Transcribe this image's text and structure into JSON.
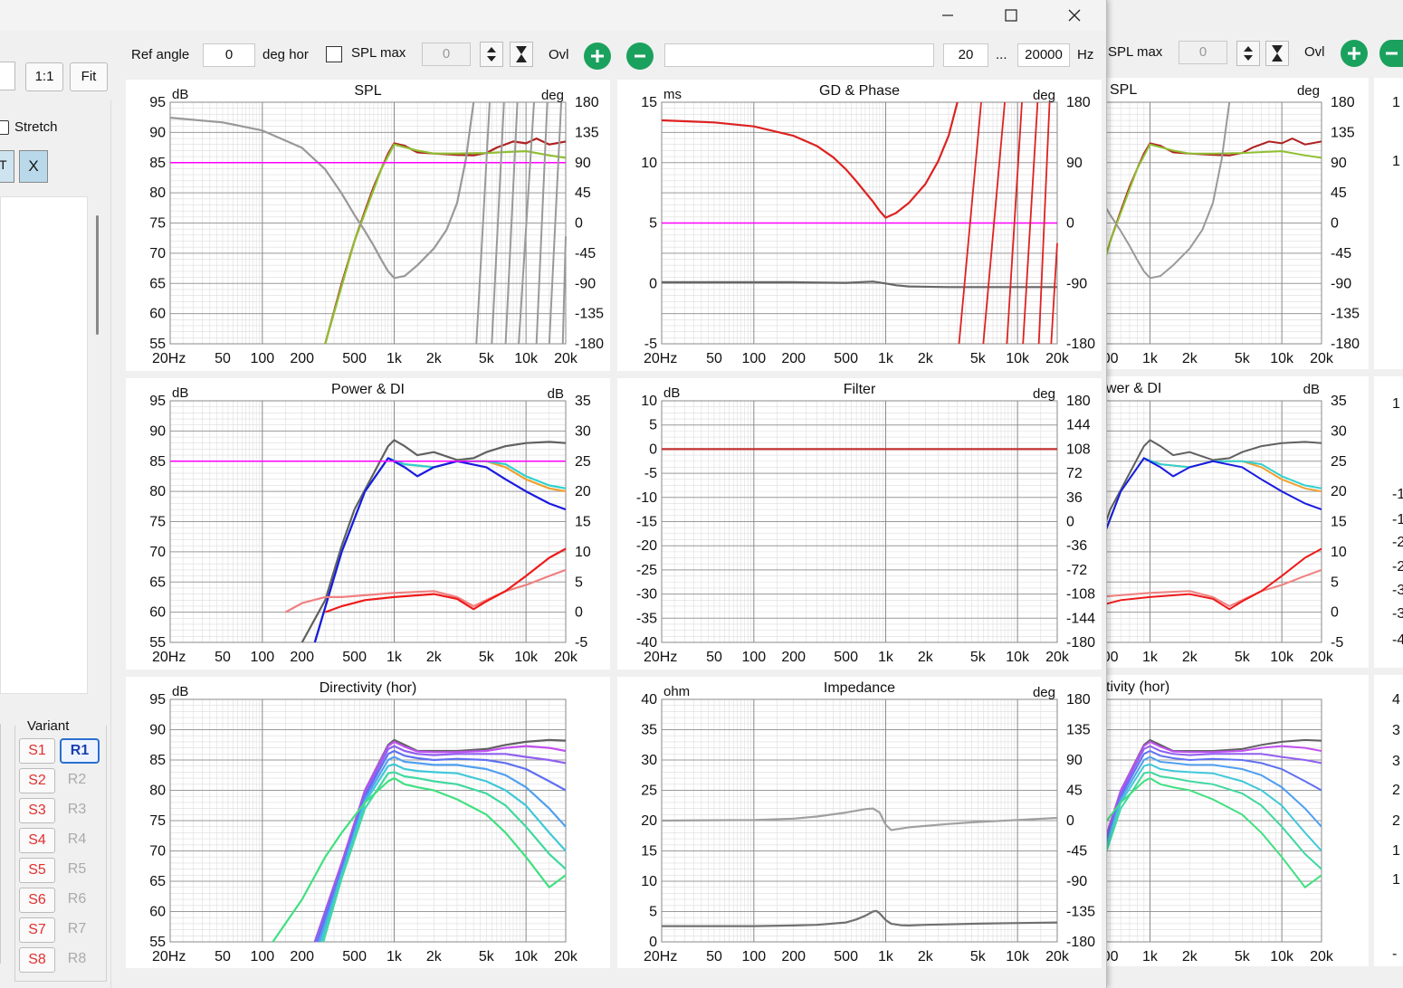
{
  "window": {
    "minimize": "minimize",
    "maximize": "maximize",
    "close": "close"
  },
  "toolbar": {
    "ref_angle_label": "Ref angle",
    "ref_angle_value": "0",
    "deg_hor_label": "deg hor",
    "spl_max_label": "SPL max",
    "spl_max_value": "0",
    "ovl_label": "Ovl",
    "freq_from": "20",
    "freq_dots": "...",
    "freq_to": "20000",
    "hz_label": "Hz"
  },
  "left_panel": {
    "btn_1to1": "1:1",
    "btn_fit": "Fit",
    "stretch_label": "Stretch",
    "btn_x": "X",
    "variant_label": "Variant",
    "s_buttons": [
      "S1",
      "S2",
      "S3",
      "S4",
      "S5",
      "S6",
      "S7",
      "S8"
    ],
    "r_buttons": [
      "R1",
      "R2",
      "R3",
      "R4",
      "R5",
      "R6",
      "R7",
      "R8"
    ]
  },
  "freq_ticks": [
    "20Hz",
    "50",
    "100",
    "200",
    "500",
    "1k",
    "2k",
    "5k",
    "10k",
    "20k"
  ],
  "partial_freq_ticks": [
    "00",
    "1k",
    "2k",
    "5k",
    "10k",
    "20k"
  ],
  "background_window": {
    "spl_max_label": "SPL max",
    "spl_max_value": "0",
    "ovl_label": "Ovl",
    "titles": [
      "SPL",
      "wer & DI",
      "tivity (hor)"
    ],
    "spl_unit_right": "deg",
    "pdi_unit_right": "dB",
    "spl_right_ticks": [
      "180",
      "135",
      "90",
      "45",
      "0",
      "-45",
      "-90",
      "-135",
      "-180"
    ],
    "pdi_right_ticks": [
      "35",
      "30",
      "25",
      "20",
      "15",
      "10",
      "5",
      "0",
      "-5"
    ],
    "edge_glyphs": [
      "1",
      "1",
      "1",
      "-1",
      "-1",
      "-2",
      "-2",
      "-3",
      "-3",
      "-4",
      "4",
      "3",
      "3",
      "2",
      "2",
      "1",
      "1",
      "-"
    ]
  },
  "chart_data": [
    {
      "type": "line",
      "title": "SPL",
      "ylabel": "dB",
      "y2label": "deg",
      "ylim": [
        55,
        95
      ],
      "y2lim": [
        -180,
        180
      ],
      "yticks": [
        "95",
        "90",
        "85",
        "80",
        "75",
        "70",
        "65",
        "60",
        "55"
      ],
      "y2ticks": [
        "180",
        "135",
        "90",
        "45",
        "0",
        "-45",
        "-90",
        "-135",
        "-180"
      ],
      "xlim": [
        20,
        20000
      ],
      "xscale": "log",
      "grid": true,
      "series": [
        {
          "color": "#b02020",
          "axis": "y",
          "x": [
            300,
            400,
            500,
            600,
            700,
            800,
            900,
            1000,
            1200,
            1500,
            2000,
            3000,
            4000,
            5000,
            6000,
            8000,
            10000,
            12000,
            15000,
            20000
          ],
          "y": [
            55,
            65,
            72,
            77,
            81,
            84,
            86.5,
            88.2,
            87.8,
            86.7,
            86.5,
            86.3,
            86.2,
            86.6,
            87.5,
            88.5,
            88.2,
            89,
            88,
            88.5
          ]
        },
        {
          "color": "#8fbf30",
          "axis": "y",
          "x": [
            300,
            500,
            800,
            1000,
            1500,
            2000,
            3000,
            5000,
            8000,
            10000,
            15000,
            20000
          ],
          "y": [
            55,
            72,
            84,
            88,
            87,
            86.5,
            86.5,
            86.6,
            86.8,
            86.9,
            86.2,
            85.8
          ]
        },
        {
          "color": "#999999",
          "axis": "y2",
          "x": [
            20,
            50,
            100,
            200,
            300,
            400,
            500,
            600,
            700,
            800,
            900,
            1000,
            1200,
            1500,
            2000,
            2500,
            3000,
            3500,
            4000
          ],
          "y": [
            157,
            150,
            138,
            112,
            80,
            44,
            12,
            -12,
            -34,
            -55,
            -72,
            -82,
            -79,
            -63,
            -38,
            -10,
            30,
            95,
            180
          ]
        },
        {
          "color": "#ff00ff",
          "axis": "y",
          "x": [
            20,
            20000
          ],
          "y": [
            85,
            85
          ]
        }
      ]
    },
    {
      "type": "line",
      "title": "GD & Phase",
      "ylabel": "ms",
      "y2label": "deg",
      "ylim": [
        -5,
        15
      ],
      "y2lim": [
        -180,
        180
      ],
      "yticks": [
        "15",
        "",
        "10",
        "",
        "5",
        "",
        "0",
        "",
        "-5"
      ],
      "y2ticks": [
        "180",
        "",
        "90",
        "",
        "0",
        "",
        "-90",
        "",
        "-180"
      ],
      "xlim": [
        20,
        20000
      ],
      "xscale": "log",
      "grid": true,
      "series": [
        {
          "color": "#dd2222",
          "axis": "y2",
          "x": [
            20,
            50,
            100,
            200,
            300,
            400,
            500,
            600,
            700,
            800,
            900,
            1000,
            1200,
            1500,
            2000,
            2500,
            3000,
            3500
          ],
          "y": [
            153,
            150,
            144,
            130,
            115,
            98,
            80,
            62,
            46,
            32,
            18,
            8,
            15,
            30,
            58,
            92,
            130,
            180
          ]
        },
        {
          "color": "#ff00ff",
          "axis": "y",
          "x": [
            20,
            20000
          ],
          "y": [
            5,
            5
          ]
        },
        {
          "color": "#666666",
          "axis": "y",
          "x": [
            20,
            200,
            500,
            800,
            1000,
            1200,
            1500,
            3000,
            20000
          ],
          "y": [
            0.1,
            0.1,
            0.05,
            0.15,
            0.0,
            -0.15,
            -0.25,
            -0.3,
            -0.3
          ]
        }
      ]
    },
    {
      "type": "line",
      "title": "Power & DI",
      "ylabel": "dB",
      "y2label": "dB",
      "ylim": [
        55,
        95
      ],
      "y2lim": [
        -5,
        35
      ],
      "yticks": [
        "95",
        "90",
        "85",
        "80",
        "75",
        "70",
        "65",
        "60",
        "55"
      ],
      "y2ticks": [
        "35",
        "30",
        "25",
        "20",
        "15",
        "10",
        "5",
        "0",
        "-5"
      ],
      "xlim": [
        20,
        20000
      ],
      "xscale": "log",
      "grid": true,
      "series": [
        {
          "color": "#606060",
          "axis": "y",
          "x": [
            200,
            300,
            400,
            500,
            700,
            900,
            1000,
            1200,
            1500,
            2000,
            3000,
            4000,
            5000,
            7000,
            10000,
            15000,
            20000
          ],
          "y": [
            55,
            62,
            71,
            77,
            83,
            87.5,
            88.5,
            87.5,
            86,
            86.5,
            85.2,
            85.5,
            86.5,
            87.5,
            88,
            88.2,
            88
          ]
        },
        {
          "color": "#f0a030",
          "axis": "y",
          "x": [
            250,
            400,
            600,
            900,
            1200,
            2000,
            3000,
            5000,
            7000,
            10000,
            15000,
            20000
          ],
          "y": [
            55,
            70,
            80,
            85.5,
            84.5,
            84,
            85,
            85,
            84,
            82,
            80.5,
            80
          ]
        },
        {
          "color": "#30d0d0",
          "axis": "y",
          "x": [
            250,
            400,
            600,
            900,
            1200,
            2000,
            3000,
            5000,
            7000,
            10000,
            15000,
            20000
          ],
          "y": [
            55,
            70,
            80,
            85.5,
            84.5,
            84,
            85,
            85,
            84.5,
            82.5,
            81,
            80.5
          ]
        },
        {
          "color": "#1a1ae0",
          "axis": "y",
          "x": [
            250,
            400,
            600,
            900,
            1200,
            1500,
            2000,
            3000,
            5000,
            7000,
            10000,
            15000,
            20000
          ],
          "y": [
            55,
            70,
            80,
            85.5,
            84,
            82.5,
            84,
            85,
            84,
            82,
            80,
            78,
            77
          ]
        },
        {
          "color": "#f08080",
          "axis": "y2",
          "x": [
            150,
            200,
            300,
            400,
            600,
            1000,
            2000,
            3000,
            4000,
            5000,
            7000,
            10000,
            15000,
            20000
          ],
          "y": [
            0,
            1.5,
            2.5,
            2.5,
            2.8,
            3.2,
            3.5,
            2.5,
            1,
            2,
            3.5,
            4.5,
            6,
            7
          ]
        },
        {
          "color": "#ee1a1a",
          "axis": "y2",
          "x": [
            300,
            400,
            600,
            1000,
            2000,
            3000,
            4000,
            5000,
            7000,
            10000,
            15000,
            20000
          ],
          "y": [
            0,
            1,
            2,
            2.5,
            3,
            2.2,
            0.5,
            1.8,
            3.5,
            6,
            9,
            10.5
          ]
        },
        {
          "color": "#ff00ff",
          "axis": "y",
          "x": [
            20,
            20000
          ],
          "y": [
            85,
            85
          ]
        }
      ]
    },
    {
      "type": "line",
      "title": "Filter",
      "ylabel": "dB",
      "y2label": "deg",
      "ylim": [
        -40,
        10
      ],
      "y2lim": [
        -180,
        180
      ],
      "yticks": [
        "10",
        "5",
        "0",
        "-5",
        "-10",
        "-15",
        "-20",
        "-25",
        "-30",
        "-35",
        "-40"
      ],
      "y2ticks": [
        "180",
        "144",
        "108",
        "72",
        "36",
        "0",
        "-36",
        "-72",
        "-108",
        "-144",
        "-180"
      ],
      "xlim": [
        20,
        20000
      ],
      "xscale": "log",
      "grid": true,
      "series": [
        {
          "color": "#c03030",
          "axis": "y",
          "x": [
            20,
            20000
          ],
          "y": [
            0,
            0
          ]
        }
      ]
    },
    {
      "type": "line",
      "title": "Directivity (hor)",
      "ylabel": "dB",
      "ylim": [
        55,
        95
      ],
      "yticks": [
        "95",
        "90",
        "85",
        "80",
        "75",
        "70",
        "65",
        "60",
        "55"
      ],
      "xlim": [
        20,
        20000
      ],
      "xscale": "log",
      "grid": true,
      "series": [
        {
          "color": "#606060",
          "x": [
            250,
            400,
            600,
            900,
            1000,
            1200,
            1500,
            2000,
            3000,
            5000,
            7000,
            10000,
            15000,
            20000
          ],
          "y": [
            55,
            68,
            80,
            87.5,
            88.3,
            87.5,
            86.5,
            86.5,
            86.5,
            86.8,
            87.5,
            88,
            88.3,
            88.2
          ]
        },
        {
          "color": "#c050f0",
          "x": [
            250,
            400,
            600,
            900,
            1000,
            1200,
            1500,
            2000,
            3000,
            5000,
            7000,
            10000,
            15000,
            20000
          ],
          "y": [
            55,
            68,
            80,
            87.3,
            88,
            87.2,
            86.4,
            86.3,
            86.3,
            86.5,
            87,
            87.3,
            87,
            86.5
          ]
        },
        {
          "color": "#9060f0",
          "x": [
            250,
            400,
            600,
            900,
            1000,
            1200,
            1500,
            2000,
            3000,
            5000,
            7000,
            10000,
            15000,
            20000
          ],
          "y": [
            55,
            67.5,
            79.5,
            86.8,
            87.3,
            86.5,
            86,
            85.8,
            86,
            86,
            86,
            85.5,
            85,
            84.5
          ]
        },
        {
          "color": "#6070f0",
          "x": [
            260,
            400,
            600,
            900,
            1000,
            1200,
            1500,
            2000,
            3000,
            5000,
            7000,
            10000,
            15000,
            20000
          ],
          "y": [
            55,
            67,
            79,
            86,
            86.5,
            85.7,
            85.3,
            85,
            85.2,
            85,
            84.5,
            83.5,
            81.5,
            80
          ]
        },
        {
          "color": "#50a0f0",
          "x": [
            270,
            400,
            600,
            900,
            1000,
            1200,
            1500,
            2000,
            3000,
            5000,
            7000,
            10000,
            15000,
            20000
          ],
          "y": [
            55,
            66.5,
            78.5,
            85,
            85.5,
            84.7,
            84.5,
            84.2,
            84.2,
            83.5,
            82.5,
            80.5,
            77,
            74
          ]
        },
        {
          "color": "#40c8d8",
          "x": [
            280,
            400,
            600,
            900,
            1000,
            1200,
            1500,
            2000,
            3000,
            5000,
            7000,
            10000,
            15000,
            20000
          ],
          "y": [
            55,
            66,
            78,
            84,
            84.3,
            83.5,
            83.2,
            83,
            82.8,
            81.5,
            80,
            77.5,
            73,
            70
          ]
        },
        {
          "color": "#40d8a0",
          "x": [
            290,
            400,
            600,
            900,
            1000,
            1200,
            1500,
            2000,
            3000,
            5000,
            7000,
            10000,
            15000,
            20000
          ],
          "y": [
            55,
            65.5,
            77,
            82.8,
            83,
            82.3,
            82,
            81.5,
            81,
            79.5,
            77.5,
            74,
            69.5,
            67
          ]
        },
        {
          "color": "#40e080",
          "x": [
            120,
            200,
            300,
            400,
            600,
            900,
            1000,
            1200,
            1500,
            2000,
            3000,
            5000,
            7000,
            10000,
            15000,
            20000
          ],
          "y": [
            55,
            62,
            69,
            73,
            78,
            81.5,
            82,
            81,
            80.5,
            80,
            78.5,
            76,
            73,
            69,
            64,
            66
          ]
        }
      ]
    },
    {
      "type": "line",
      "title": "Impedance",
      "ylabel": "ohm",
      "y2label": "deg",
      "ylim": [
        0,
        40
      ],
      "y2lim": [
        -180,
        180
      ],
      "yticks": [
        "40",
        "35",
        "30",
        "25",
        "20",
        "15",
        "10",
        "5",
        "0"
      ],
      "y2ticks": [
        "180",
        "135",
        "90",
        "45",
        "0",
        "-45",
        "-90",
        "-135",
        "-180"
      ],
      "xlim": [
        20,
        20000
      ],
      "xscale": "log",
      "grid": true,
      "series": [
        {
          "color": "#a0a0a0",
          "axis": "y2",
          "x": [
            20,
            100,
            200,
            300,
            500,
            700,
            800,
            900,
            1000,
            1100,
            1500,
            3000,
            5000,
            10000,
            20000
          ],
          "y": [
            0,
            1,
            3,
            6,
            12,
            17,
            18,
            12,
            -6,
            -14,
            -10,
            -5,
            -2,
            1,
            4
          ]
        },
        {
          "color": "#707070",
          "axis": "y",
          "x": [
            20,
            100,
            200,
            300,
            500,
            600,
            700,
            800,
            850,
            900,
            1000,
            1100,
            1300,
            1500,
            2000,
            5000,
            10000,
            20000
          ],
          "y": [
            2.6,
            2.6,
            2.7,
            2.8,
            3.2,
            3.7,
            4.3,
            5.0,
            5.1,
            4.7,
            3.6,
            3.0,
            2.75,
            2.7,
            2.8,
            3.0,
            3.1,
            3.2
          ]
        }
      ]
    }
  ]
}
